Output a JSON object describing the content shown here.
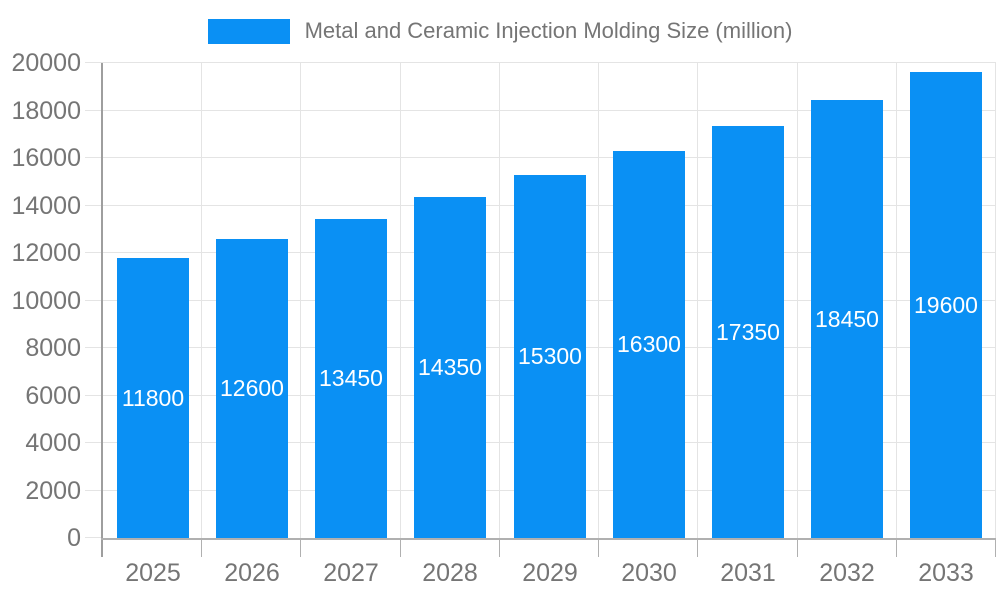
{
  "legend": {
    "label": "Metal and Ceramic Injection Molding Size (million)"
  },
  "chart_data": {
    "type": "bar",
    "title": "Metal and Ceramic Injection Molding Size (million)",
    "categories": [
      "2025",
      "2026",
      "2027",
      "2028",
      "2029",
      "2030",
      "2031",
      "2032",
      "2033"
    ],
    "values": [
      11800,
      12600,
      13450,
      14350,
      15300,
      16300,
      17350,
      18450,
      19600
    ],
    "xlabel": "",
    "ylabel": "",
    "ylim": [
      0,
      20000
    ],
    "yticks": [
      0,
      2000,
      4000,
      6000,
      8000,
      10000,
      12000,
      14000,
      16000,
      18000,
      20000
    ],
    "grid": true,
    "legend_position": "top-center",
    "bar_color": "#0a90f4",
    "value_label_color": "#ffffff",
    "value_label_position": "inside-center",
    "axis_text_color": "#757575",
    "gridline_color": "#e4e4e4",
    "axis_line_color": "#9e9e9e"
  }
}
